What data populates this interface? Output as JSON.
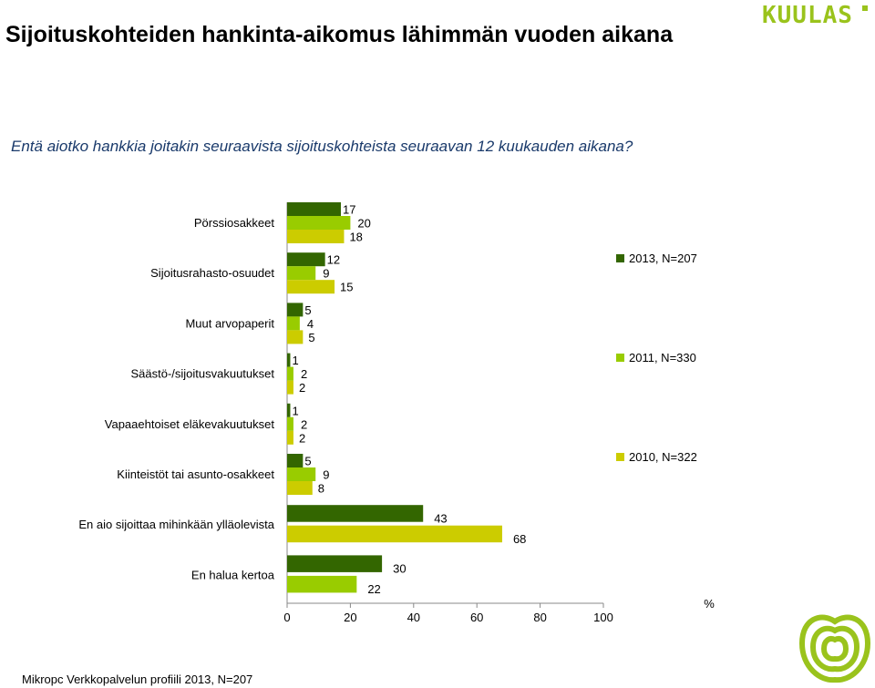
{
  "header": {
    "title": "Sijoituskohteiden hankinta-aikomus lähimmän vuoden aikana",
    "subtitle": "Entä aiotko hankkia joitakin seuraavista sijoituskohteista seuraavan 12 kuukauden aikana?",
    "logo_text": "KUULAS"
  },
  "footer": {
    "source": "Mikropc Verkkopalvelun profiili 2013, N=207"
  },
  "colors": {
    "s2013": "#336600",
    "s2011": "#99cc00",
    "s2010": "#cccc00",
    "brand": "#9ac31c"
  },
  "chart_data": {
    "type": "bar",
    "orientation": "horizontal",
    "categories": [
      "Pörssiosakkeet",
      "Sijoitusrahasto-osuudet",
      "Muut arvopaperit",
      "Säästö-/sijoitusvakuutukset",
      "Vapaaehtoiset eläkevakuutukset",
      "Kiinteistöt tai asunto-osakkeet",
      "En aio sijoittaa mihinkään ylläolevista",
      "En halua kertoa"
    ],
    "series": [
      {
        "name": "2013, N=207",
        "color": "#336600",
        "values": [
          17,
          12,
          5,
          1,
          1,
          5,
          43,
          30
        ]
      },
      {
        "name": "2011, N=330",
        "color": "#99cc00",
        "values": [
          20,
          9,
          4,
          2,
          2,
          9,
          null,
          22
        ]
      },
      {
        "name": "2010, N=322",
        "color": "#cccc00",
        "values": [
          18,
          15,
          5,
          2,
          2,
          8,
          68,
          null
        ]
      }
    ],
    "xlim": [
      0,
      100
    ],
    "xticks": [
      "0",
      "20",
      "40",
      "60",
      "80",
      "100"
    ],
    "xlabel": "%",
    "legend": "right"
  }
}
